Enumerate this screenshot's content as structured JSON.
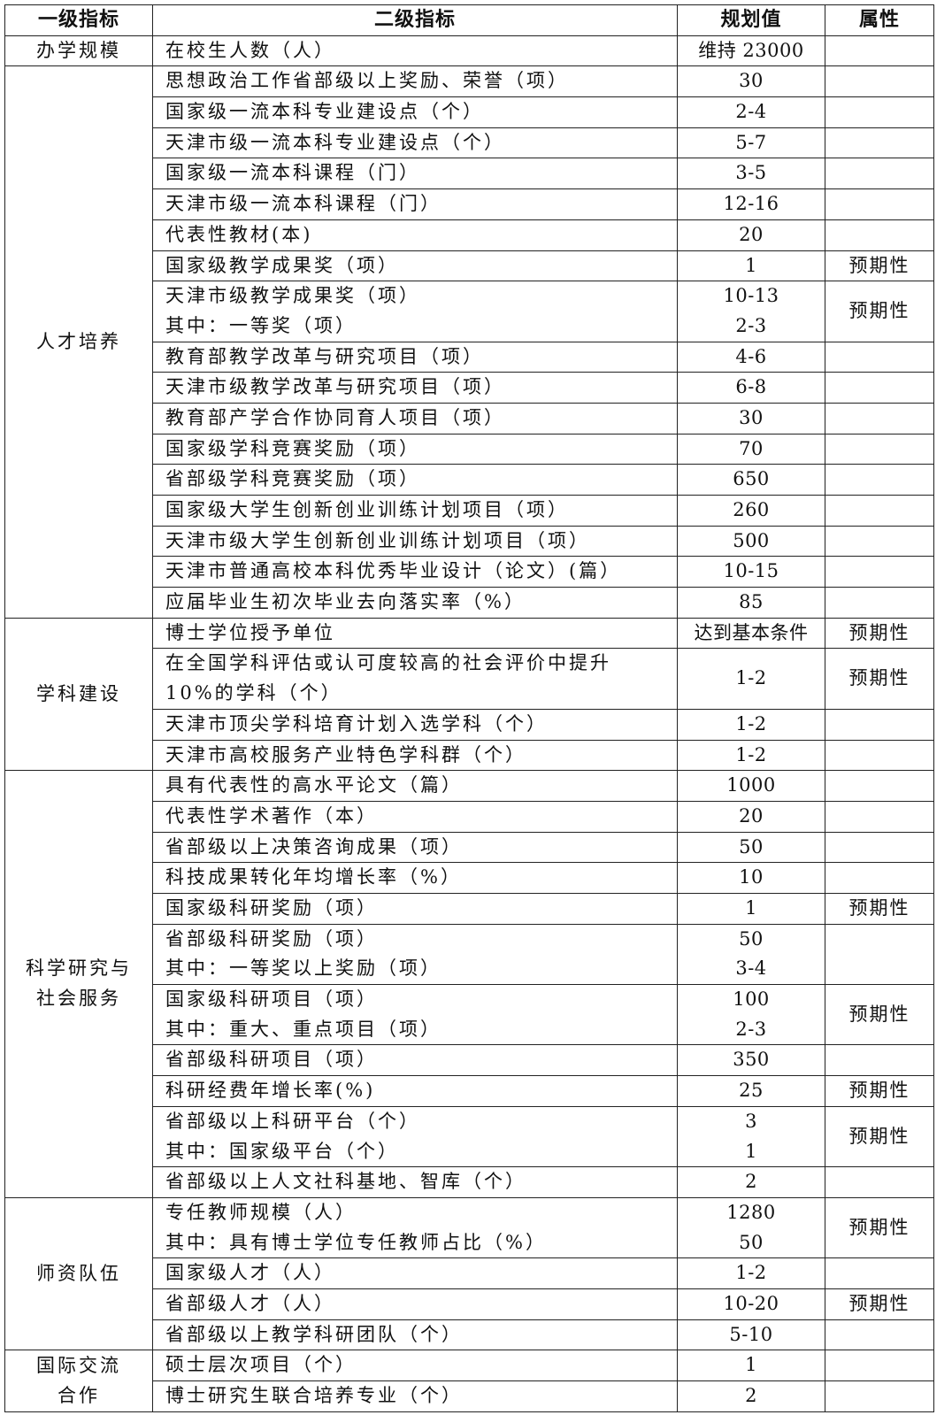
{
  "header": [
    "一级指标",
    "二级指标",
    "规划值",
    "属性"
  ],
  "groups": [
    {
      "name": [
        "办学规模"
      ],
      "rows": [
        {
          "indicator": [
            "在校生人数（人）"
          ],
          "value": [
            "维持 23000"
          ],
          "attr": ""
        }
      ]
    },
    {
      "name": [
        "人才培养"
      ],
      "rows": [
        {
          "indicator": [
            "思想政治工作省部级以上奖励、荣誉（项）"
          ],
          "value": [
            "30"
          ],
          "attr": ""
        },
        {
          "indicator": [
            "国家级一流本科专业建设点（个）"
          ],
          "value": [
            "2-4"
          ],
          "attr": ""
        },
        {
          "indicator": [
            "天津市级一流本科专业建设点（个）"
          ],
          "value": [
            "5-7"
          ],
          "attr": ""
        },
        {
          "indicator": [
            "国家级一流本科课程（门）"
          ],
          "value": [
            "3-5"
          ],
          "attr": ""
        },
        {
          "indicator": [
            "天津市级一流本科课程（门）"
          ],
          "value": [
            "12-16"
          ],
          "attr": ""
        },
        {
          "indicator": [
            "代表性教材(本)"
          ],
          "value": [
            "20"
          ],
          "attr": ""
        },
        {
          "indicator": [
            "国家级教学成果奖（项）"
          ],
          "value": [
            "1"
          ],
          "attr": "预期性"
        },
        {
          "indicator": [
            "天津市级教学成果奖（项）",
            "其中：一等奖（项）"
          ],
          "value": [
            "10-13",
            "2-3"
          ],
          "attr": "预期性"
        },
        {
          "indicator": [
            "教育部教学改革与研究项目（项）"
          ],
          "value": [
            "4-6"
          ],
          "attr": ""
        },
        {
          "indicator": [
            "天津市级教学改革与研究项目（项）"
          ],
          "value": [
            "6-8"
          ],
          "attr": ""
        },
        {
          "indicator": [
            "教育部产学合作协同育人项目（项）"
          ],
          "value": [
            "30"
          ],
          "attr": ""
        },
        {
          "indicator": [
            "国家级学科竞赛奖励（项）"
          ],
          "value": [
            "70"
          ],
          "attr": ""
        },
        {
          "indicator": [
            "省部级学科竞赛奖励（项）"
          ],
          "value": [
            "650"
          ],
          "attr": ""
        },
        {
          "indicator": [
            "国家级大学生创新创业训练计划项目（项）"
          ],
          "value": [
            "260"
          ],
          "attr": ""
        },
        {
          "indicator": [
            "天津市级大学生创新创业训练计划项目（项）"
          ],
          "value": [
            "500"
          ],
          "attr": ""
        },
        {
          "indicator": [
            "天津市普通高校本科优秀毕业设计（论文）(篇）"
          ],
          "value": [
            "10-15"
          ],
          "attr": ""
        },
        {
          "indicator": [
            "应届毕业生初次毕业去向落实率（%）"
          ],
          "value": [
            "85"
          ],
          "attr": ""
        }
      ]
    },
    {
      "name": [
        "学科建设"
      ],
      "rows": [
        {
          "indicator": [
            "博士学位授予单位"
          ],
          "value": [
            "达到基本条件"
          ],
          "attr": "预期性"
        },
        {
          "indicator": [
            "在全国学科评估或认可度较高的社会评价中提升",
            "10%的学科（个）"
          ],
          "value": [
            "1-2"
          ],
          "attr": "预期性"
        },
        {
          "indicator": [
            "天津市顶尖学科培育计划入选学科（个）"
          ],
          "value": [
            "1-2"
          ],
          "attr": ""
        },
        {
          "indicator": [
            "天津市高校服务产业特色学科群（个）"
          ],
          "value": [
            "1-2"
          ],
          "attr": ""
        }
      ]
    },
    {
      "name": [
        "科学研究与",
        "社会服务"
      ],
      "rows": [
        {
          "indicator": [
            "具有代表性的高水平论文（篇）"
          ],
          "value": [
            "1000"
          ],
          "attr": ""
        },
        {
          "indicator": [
            "代表性学术著作（本）"
          ],
          "value": [
            "20"
          ],
          "attr": ""
        },
        {
          "indicator": [
            "省部级以上决策咨询成果（项）"
          ],
          "value": [
            "50"
          ],
          "attr": ""
        },
        {
          "indicator": [
            "科技成果转化年均增长率（%）"
          ],
          "value": [
            "10"
          ],
          "attr": ""
        },
        {
          "indicator": [
            "国家级科研奖励（项）"
          ],
          "value": [
            "1"
          ],
          "attr": "预期性"
        },
        {
          "indicator": [
            "省部级科研奖励（项）",
            "其中：一等奖以上奖励（项）"
          ],
          "value": [
            "50",
            "3-4"
          ],
          "attr": ""
        },
        {
          "indicator": [
            "国家级科研项目（项）",
            "其中：重大、重点项目（项）"
          ],
          "value": [
            "100",
            "2-3"
          ],
          "attr": "预期性"
        },
        {
          "indicator": [
            "省部级科研项目（项）"
          ],
          "value": [
            "350"
          ],
          "attr": ""
        },
        {
          "indicator": [
            "科研经费年增长率(%)"
          ],
          "value": [
            "25"
          ],
          "attr": "预期性"
        },
        {
          "indicator": [
            "省部级以上科研平台（个）",
            "其中：国家级平台（个）"
          ],
          "value": [
            "3",
            "1"
          ],
          "attr": "预期性"
        },
        {
          "indicator": [
            "省部级以上人文社科基地、智库（个）"
          ],
          "value": [
            "2"
          ],
          "attr": ""
        }
      ]
    },
    {
      "name": [
        "师资队伍"
      ],
      "rows": [
        {
          "indicator": [
            "专任教师规模（人）",
            "其中：具有博士学位专任教师占比（%）"
          ],
          "value": [
            "1280",
            "50"
          ],
          "attr": "预期性"
        },
        {
          "indicator": [
            "国家级人才（人）"
          ],
          "value": [
            "1-2"
          ],
          "attr": ""
        },
        {
          "indicator": [
            "省部级人才（人）"
          ],
          "value": [
            "10-20"
          ],
          "attr": "预期性"
        },
        {
          "indicator": [
            "省部级以上教学科研团队（个）"
          ],
          "value": [
            "5-10"
          ],
          "attr": ""
        }
      ]
    },
    {
      "name": [
        "国际交流",
        "合作"
      ],
      "rows": [
        {
          "indicator": [
            "硕士层次项目（个）"
          ],
          "value": [
            "1"
          ],
          "attr": ""
        },
        {
          "indicator": [
            "博士研究生联合培养专业（个）"
          ],
          "value": [
            "2"
          ],
          "attr": ""
        }
      ]
    }
  ]
}
